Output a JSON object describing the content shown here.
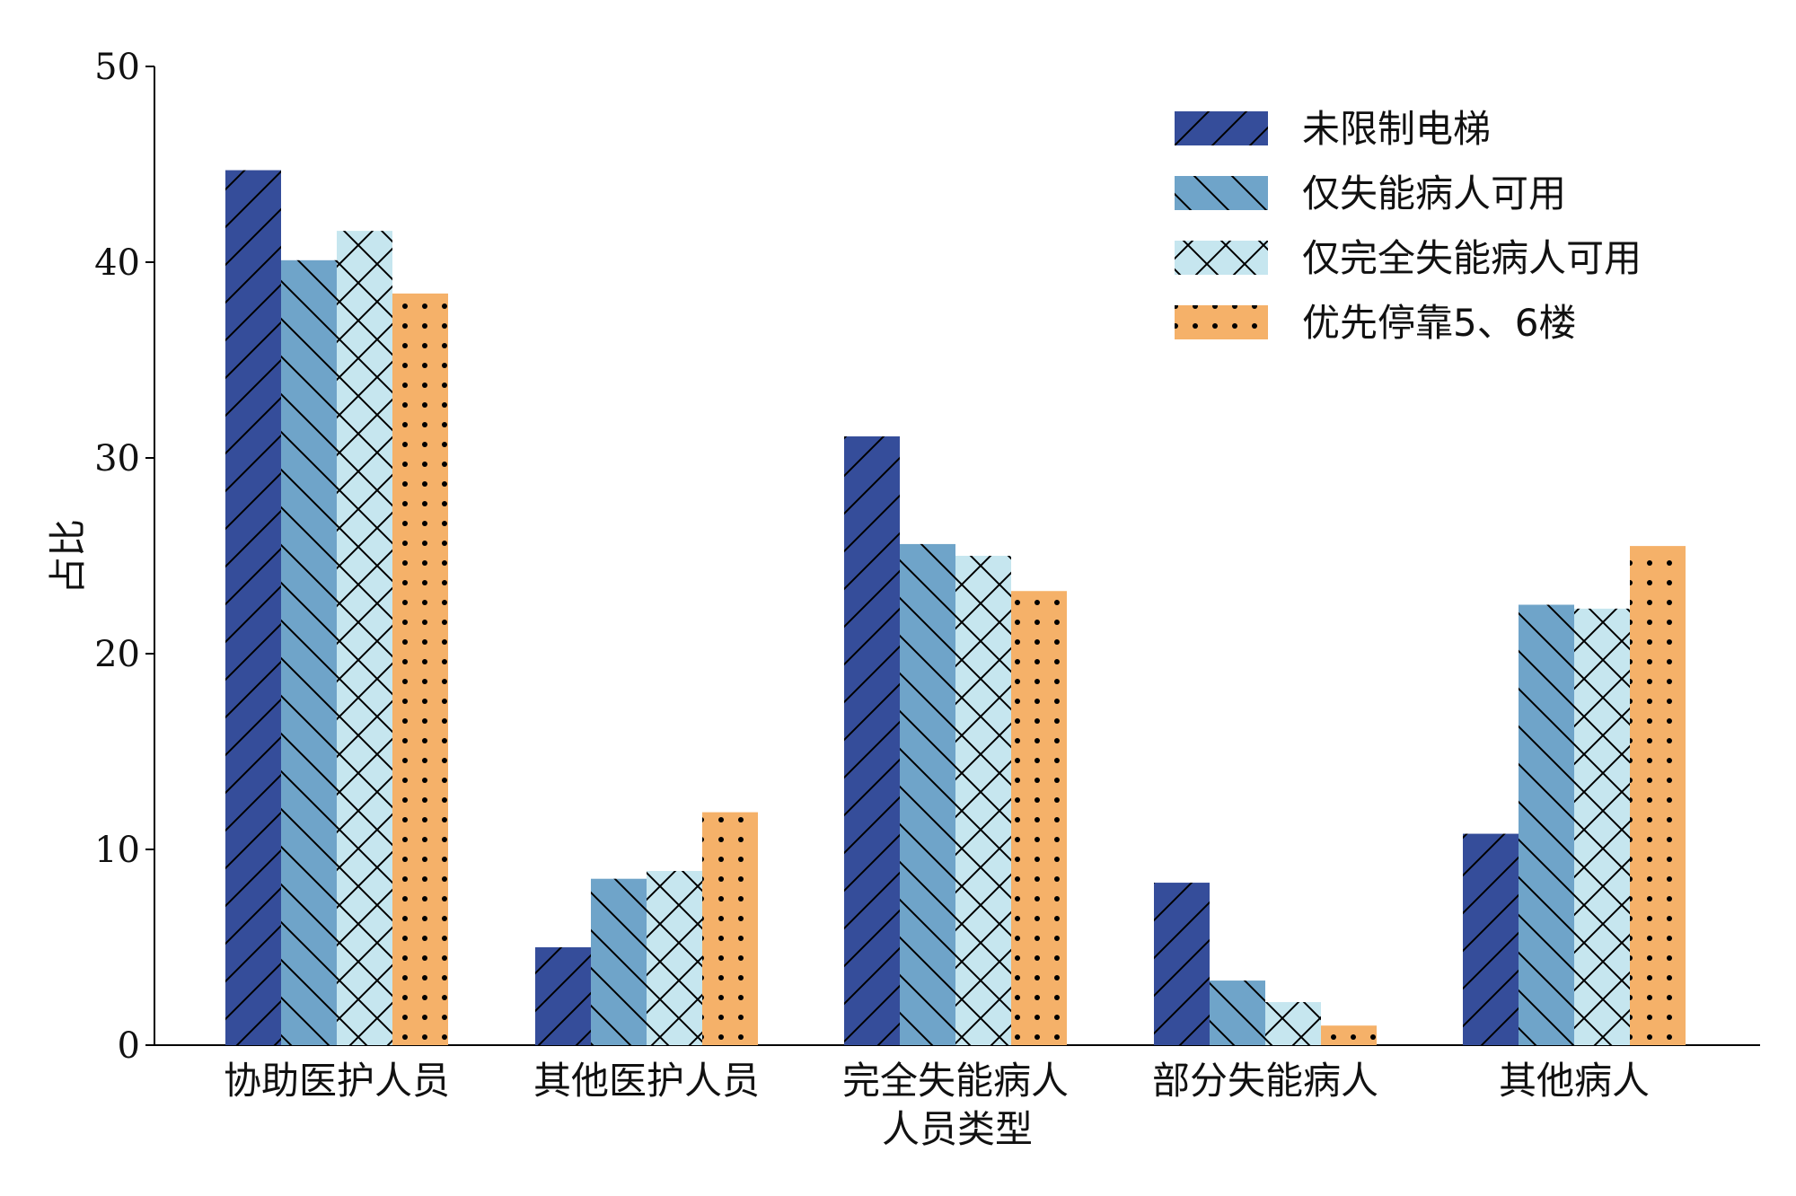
{
  "chart_data": {
    "type": "bar",
    "title": "",
    "xlabel": "人员类型",
    "ylabel": "占比",
    "ylim": [
      0,
      50
    ],
    "yticks": [
      0,
      10,
      20,
      30,
      40,
      50
    ],
    "grid": false,
    "legend_position": "top-right",
    "categories": [
      "协助医护人员",
      "其他医护人员",
      "完全失能病人",
      "部分失能病人",
      "其他病人"
    ],
    "series": [
      {
        "name": "未限制电梯",
        "color": "#354d9a",
        "pattern": "forward-hatch",
        "values": [
          44.7,
          5.0,
          31.1,
          8.3,
          10.8
        ]
      },
      {
        "name": "仅失能病人可用",
        "color": "#6fa4c9",
        "pattern": "back-hatch",
        "values": [
          40.1,
          8.5,
          25.6,
          3.3,
          22.5
        ]
      },
      {
        "name": "仅完全失能病人可用",
        "color": "#c6e6ef",
        "pattern": "cross-hatch",
        "values": [
          41.6,
          8.9,
          25.0,
          2.2,
          22.3
        ]
      },
      {
        "name": "优先停靠5、6楼",
        "color": "#f5b169",
        "pattern": "dots",
        "values": [
          38.4,
          11.9,
          23.2,
          1.0,
          25.5
        ]
      }
    ]
  }
}
